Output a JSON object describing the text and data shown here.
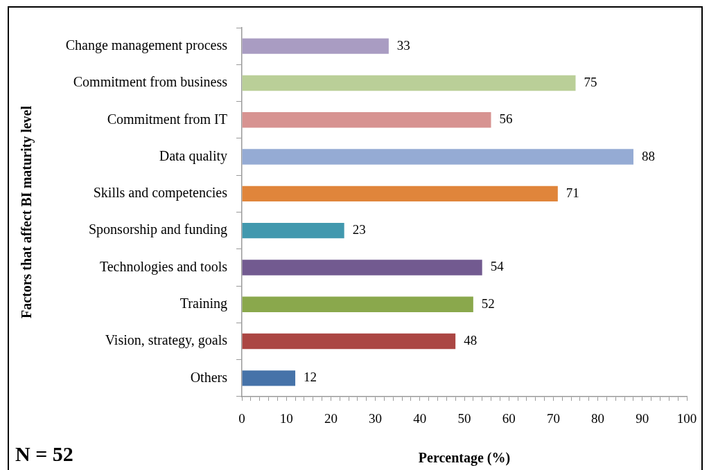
{
  "chart_data": {
    "type": "bar",
    "orientation": "horizontal",
    "xlabel": "Percentage (%)",
    "ylabel": "Factors that affect BI maturity level",
    "categories": [
      "Change management process",
      "Commitment from business",
      "Commitment from IT",
      "Data quality",
      "Skills and competencies",
      "Sponsorship and funding",
      "Technologies and tools",
      "Training",
      "Vision, strategy, goals",
      "Others"
    ],
    "values": [
      33,
      75,
      56,
      88,
      71,
      23,
      54,
      52,
      48,
      12
    ],
    "colors": [
      "#a99cc2",
      "#bacf98",
      "#d79391",
      "#95abd4",
      "#e0853b",
      "#4198ae",
      "#725a90",
      "#8aa84c",
      "#ab4643",
      "#4673a9"
    ],
    "xlim": [
      0,
      100
    ],
    "xticks": [
      0,
      {
        "value": 2,
        "label": null
      },
      {
        "value": 4,
        "label": null
      },
      {
        "value": 6,
        "label": null
      },
      {
        "value": 8,
        "label": null
      },
      10,
      {
        "value": 12,
        "label": null
      },
      {
        "value": 14,
        "label": null
      },
      {
        "value": 16,
        "label": null
      },
      {
        "value": 18,
        "label": null
      },
      20,
      {
        "value": 22,
        "label": null
      },
      {
        "value": 24,
        "label": null
      },
      {
        "value": 26,
        "label": null
      },
      {
        "value": 28,
        "label": null
      },
      30,
      {
        "value": 32,
        "label": null
      },
      {
        "value": 34,
        "label": null
      },
      {
        "value": 36,
        "label": null
      },
      {
        "value": 38,
        "label": null
      },
      40,
      {
        "value": 42,
        "label": null
      },
      {
        "value": 44,
        "label": null
      },
      {
        "value": 46,
        "label": null
      },
      {
        "value": 48,
        "label": null
      },
      50,
      {
        "value": 52,
        "label": null
      },
      {
        "value": 54,
        "label": null
      },
      {
        "value": 56,
        "label": null
      },
      {
        "value": 58,
        "label": null
      },
      60,
      {
        "value": 62,
        "label": null
      },
      {
        "value": 64,
        "label": null
      },
      {
        "value": 66,
        "label": null
      },
      {
        "value": 68,
        "label": null
      },
      70,
      {
        "value": 72,
        "label": null
      },
      {
        "value": 74,
        "label": null
      },
      {
        "value": 76,
        "label": null
      },
      {
        "value": 78,
        "label": null
      },
      80,
      {
        "value": 82,
        "label": null
      },
      {
        "value": 84,
        "label": null
      },
      {
        "value": 86,
        "label": null
      },
      {
        "value": 88,
        "label": null
      },
      90,
      {
        "value": 92,
        "label": null
      },
      {
        "value": 94,
        "label": null
      },
      {
        "value": 96,
        "label": null
      },
      {
        "value": 98,
        "label": null
      },
      100
    ],
    "data_labels": true,
    "annotations": [
      "N = 52"
    ]
  }
}
